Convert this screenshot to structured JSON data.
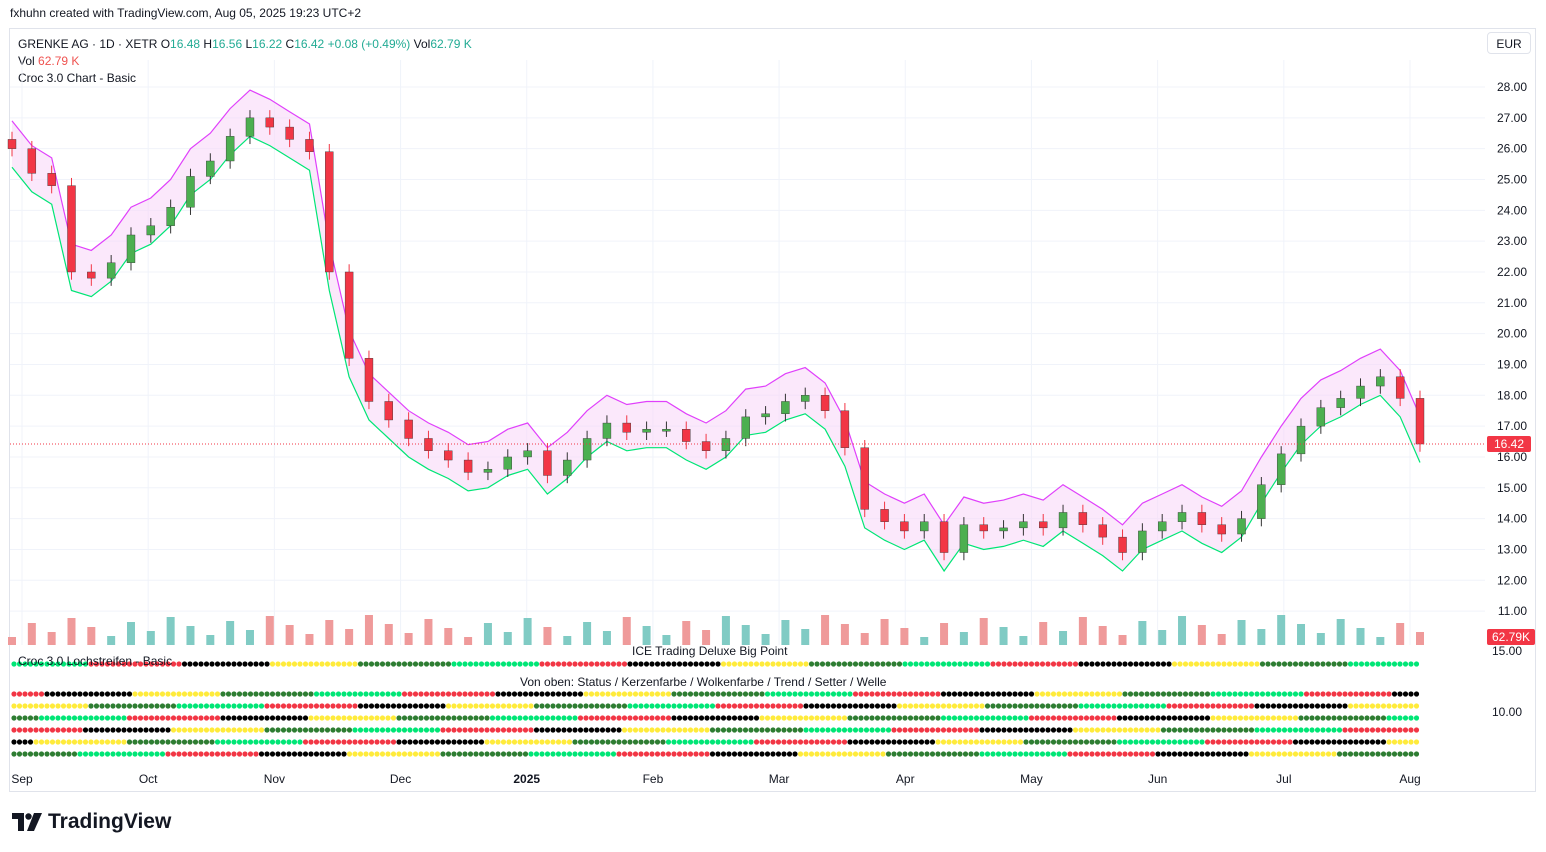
{
  "header": {
    "created_line": "fxhuhn created with TradingView.com, Aug 05, 2025 19:23 UTC+2"
  },
  "legend": {
    "symbol": "GRENKE AG · 1D · XETR",
    "open_label": "O",
    "open": "16.48",
    "high_label": "H",
    "high": "16.56",
    "low_label": "L",
    "low": "16.22",
    "close_label": "C",
    "close": "16.42",
    "change": "+0.08 (+0.49%)",
    "vol_label": "Vol",
    "vol": "62.79 K",
    "vol_line_label": "Vol",
    "vol_line_value": "62.79 K",
    "indicator": "Croc 3.0 Chart - Basic"
  },
  "currency_button": "EUR",
  "price_badge": "16.42",
  "volume_badge": "62.79K",
  "panes": {
    "strip_left": "Croc 3.0 Lochstreifen - Basic",
    "strip_center": "ICE Trading Deluxe Big Point",
    "strip_right_value": "15.00",
    "matrix_title": "Von oben: Status / Kerzenfarbe / Wolkenfarbe / Trend / Setter / Welle",
    "matrix_right_value": "10.00"
  },
  "brand": "TradingView",
  "colors": {
    "up": "#4caf50",
    "down": "#f23645",
    "cloud_line": "#e040fb",
    "trend_line": "#00e676",
    "badge": "#f23645"
  },
  "chart_data": {
    "type": "candlestick",
    "title": "GRENKE AG · 1D · XETR",
    "y_ticks": [
      "28.00",
      "27.00",
      "26.00",
      "25.00",
      "24.00",
      "23.00",
      "22.00",
      "21.00",
      "20.00",
      "19.00",
      "18.00",
      "17.00",
      "16.00",
      "15.00",
      "14.00",
      "13.00",
      "12.00",
      "11.00"
    ],
    "x_ticks": [
      "Sep",
      "Oct",
      "Nov",
      "Dec",
      "2025",
      "Feb",
      "Mar",
      "Apr",
      "May",
      "Jun",
      "Jul",
      "Aug"
    ],
    "ylim": [
      10.4,
      28.6
    ],
    "close_series": [
      26.0,
      25.2,
      24.8,
      22.0,
      21.8,
      22.3,
      23.2,
      23.5,
      24.1,
      25.1,
      25.6,
      26.4,
      27.0,
      26.7,
      26.3,
      25.9,
      22.0,
      19.2,
      17.8,
      17.2,
      16.6,
      16.2,
      15.9,
      15.5,
      15.6,
      16.0,
      16.2,
      15.4,
      15.9,
      16.6,
      17.1,
      16.8,
      16.9,
      16.9,
      16.5,
      16.2,
      16.6,
      17.3,
      17.4,
      17.8,
      18.0,
      17.5,
      16.3,
      14.3,
      13.9,
      13.6,
      13.9,
      12.9,
      13.8,
      13.6,
      13.7,
      13.9,
      13.7,
      14.2,
      13.8,
      13.4,
      12.9,
      13.6,
      13.9,
      14.2,
      13.8,
      13.5,
      14.0,
      15.1,
      16.1,
      17.0,
      17.6,
      17.9,
      18.3,
      18.6,
      17.9,
      16.42
    ],
    "volume_badge": "62.79K",
    "last_close": 16.42,
    "grid": true,
    "legend_position": "top-left"
  }
}
